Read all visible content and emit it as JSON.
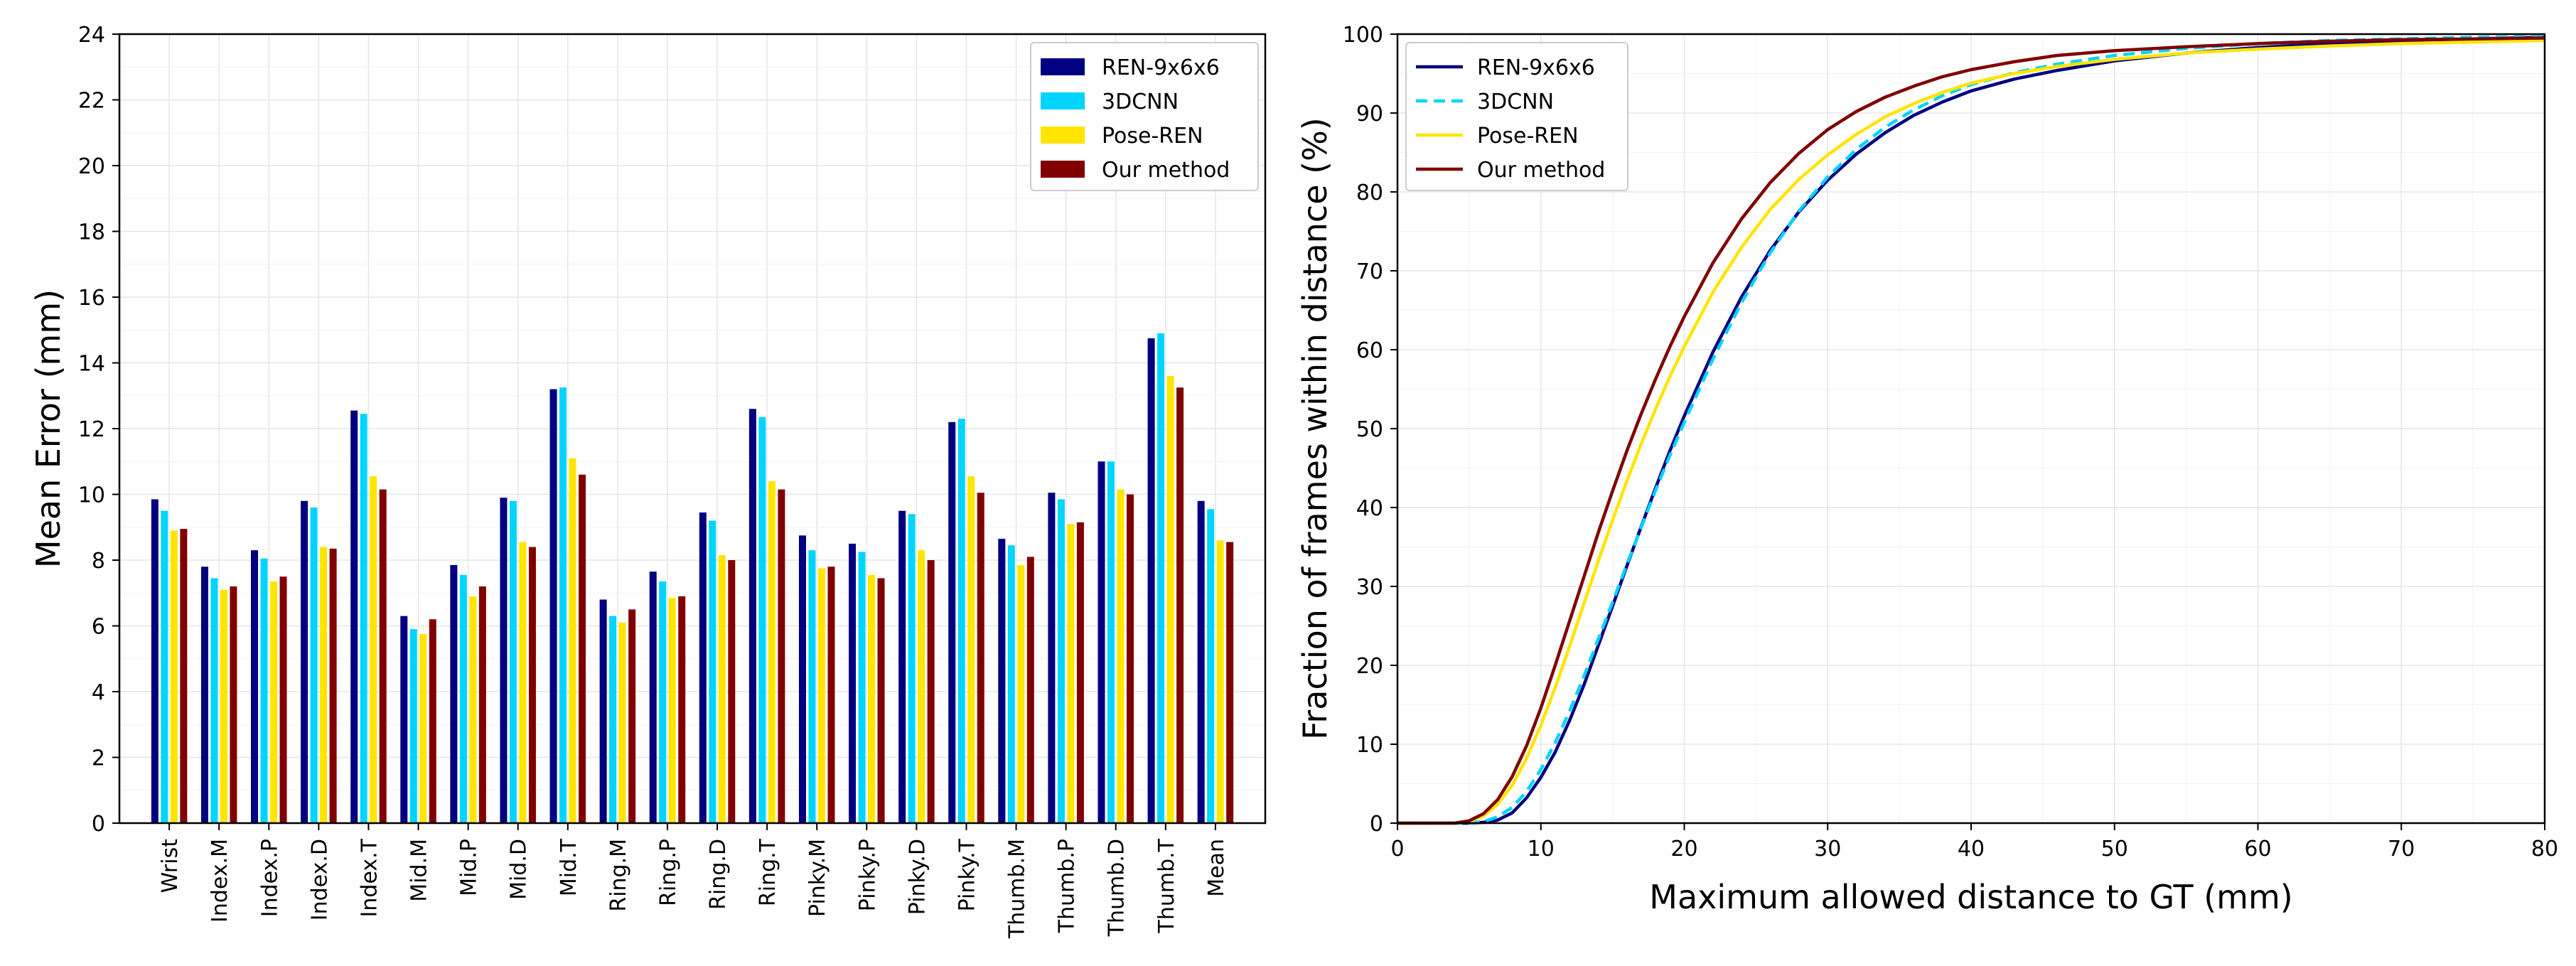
{
  "chart_data": [
    {
      "type": "bar",
      "ylabel": "Mean Error (mm)",
      "xlabel": "",
      "ylim": [
        0,
        24
      ],
      "yticks": [
        0,
        2,
        4,
        6,
        8,
        10,
        12,
        14,
        16,
        18,
        20,
        22,
        24
      ],
      "grid": true,
      "legend_position": "top-right",
      "categories": [
        "Wrist",
        "Index.M",
        "Index.P",
        "Index.D",
        "Index.T",
        "Mid.M",
        "Mid.P",
        "Mid.D",
        "Mid.T",
        "Ring.M",
        "Ring.P",
        "Ring.D",
        "Ring.T",
        "Pinky.M",
        "Pinky.P",
        "Pinky.D",
        "Pinky.T",
        "Thumb.M",
        "Thumb.P",
        "Thumb.D",
        "Thumb.T",
        "Mean"
      ],
      "series": [
        {
          "name": "REN-9x6x6",
          "color": "#000080",
          "values": [
            9.85,
            7.8,
            8.3,
            9.8,
            12.55,
            6.3,
            7.85,
            9.9,
            13.2,
            6.8,
            7.65,
            9.45,
            12.6,
            8.75,
            8.5,
            9.5,
            12.2,
            8.65,
            10.05,
            11.0,
            14.75,
            9.8
          ]
        },
        {
          "name": "3DCNN",
          "color": "#00d4ff",
          "values": [
            9.5,
            7.45,
            8.05,
            9.6,
            12.45,
            5.9,
            7.55,
            9.8,
            13.25,
            6.3,
            7.35,
            9.2,
            12.35,
            8.3,
            8.25,
            9.4,
            12.3,
            8.45,
            9.85,
            11.0,
            14.9,
            9.55
          ]
        },
        {
          "name": "Pose-REN",
          "color": "#ffe500",
          "values": [
            8.9,
            7.1,
            7.35,
            8.4,
            10.55,
            5.75,
            6.9,
            8.55,
            11.1,
            6.1,
            6.85,
            8.15,
            10.4,
            7.75,
            7.55,
            8.3,
            10.55,
            7.85,
            9.1,
            10.15,
            13.6,
            8.6
          ]
        },
        {
          "name": "Our method",
          "color": "#800000",
          "values": [
            8.95,
            7.2,
            7.5,
            8.35,
            10.15,
            6.2,
            7.2,
            8.4,
            10.6,
            6.5,
            6.9,
            8.0,
            10.15,
            7.8,
            7.45,
            8.0,
            10.05,
            8.1,
            9.15,
            10.0,
            13.25,
            8.55
          ]
        }
      ]
    },
    {
      "type": "line",
      "xlabel": "Maximum allowed distance to GT (mm)",
      "ylabel": "Fraction of frames within distance (%)",
      "xlim": [
        0,
        80
      ],
      "ylim": [
        0,
        100
      ],
      "xticks": [
        0,
        10,
        20,
        30,
        40,
        50,
        60,
        70,
        80
      ],
      "yticks": [
        0,
        10,
        20,
        30,
        40,
        50,
        60,
        70,
        80,
        90,
        100
      ],
      "grid": true,
      "legend_position": "top-left",
      "x": [
        0,
        4,
        5,
        6,
        7,
        8,
        9,
        10,
        11,
        12,
        13,
        14,
        15,
        16,
        17,
        18,
        19,
        20,
        22,
        24,
        26,
        28,
        30,
        32,
        34,
        36,
        38,
        40,
        43,
        46,
        50,
        55,
        60,
        65,
        70,
        75,
        80
      ],
      "series": [
        {
          "name": "REN-9x6x6",
          "color": "#000080",
          "dash": "solid",
          "values": [
            0,
            0,
            0,
            0.1,
            0.4,
            1.3,
            3.2,
            5.8,
            9.0,
            13.0,
            17.5,
            22.5,
            27.5,
            32.6,
            37.6,
            42.5,
            47.2,
            51.6,
            59.7,
            66.7,
            72.6,
            77.5,
            81.5,
            84.8,
            87.5,
            89.7,
            91.4,
            92.8,
            94.3,
            95.4,
            96.6,
            97.6,
            98.3,
            98.8,
            99.1,
            99.4,
            99.6
          ]
        },
        {
          "name": "3DCNN",
          "color": "#00d4ff",
          "dash": "dashed",
          "values": [
            0,
            0,
            0,
            0.2,
            0.8,
            2.0,
            4.0,
            6.8,
            10.2,
            14.2,
            18.6,
            23.3,
            28.0,
            32.8,
            37.5,
            42.2,
            46.6,
            50.8,
            58.8,
            66.0,
            72.3,
            77.6,
            81.9,
            85.4,
            88.2,
            90.4,
            92.2,
            93.6,
            95.1,
            96.2,
            97.3,
            98.2,
            98.8,
            99.2,
            99.4,
            99.6,
            99.7
          ]
        },
        {
          "name": "Pose-REN",
          "color": "#ffe500",
          "dash": "solid",
          "values": [
            0,
            0,
            0.2,
            0.9,
            2.4,
            4.8,
            8.2,
            12.4,
            17.2,
            22.4,
            27.8,
            33.2,
            38.4,
            43.4,
            48.1,
            52.5,
            56.6,
            60.4,
            67.3,
            73.0,
            77.8,
            81.6,
            84.7,
            87.3,
            89.5,
            91.2,
            92.6,
            93.8,
            95.0,
            95.9,
            96.8,
            97.6,
            98.1,
            98.5,
            98.8,
            99.0,
            99.2
          ]
        },
        {
          "name": "Our method",
          "color": "#800000",
          "dash": "solid",
          "values": [
            0,
            0,
            0.3,
            1.2,
            3.0,
            5.9,
            9.8,
            14.6,
            20.0,
            25.6,
            31.2,
            36.8,
            42.1,
            47.2,
            51.9,
            56.3,
            60.4,
            64.2,
            71.0,
            76.6,
            81.2,
            84.9,
            87.9,
            90.2,
            92.0,
            93.4,
            94.6,
            95.5,
            96.5,
            97.3,
            97.9,
            98.4,
            98.8,
            99.1,
            99.3,
            99.4,
            99.5
          ]
        }
      ]
    }
  ]
}
